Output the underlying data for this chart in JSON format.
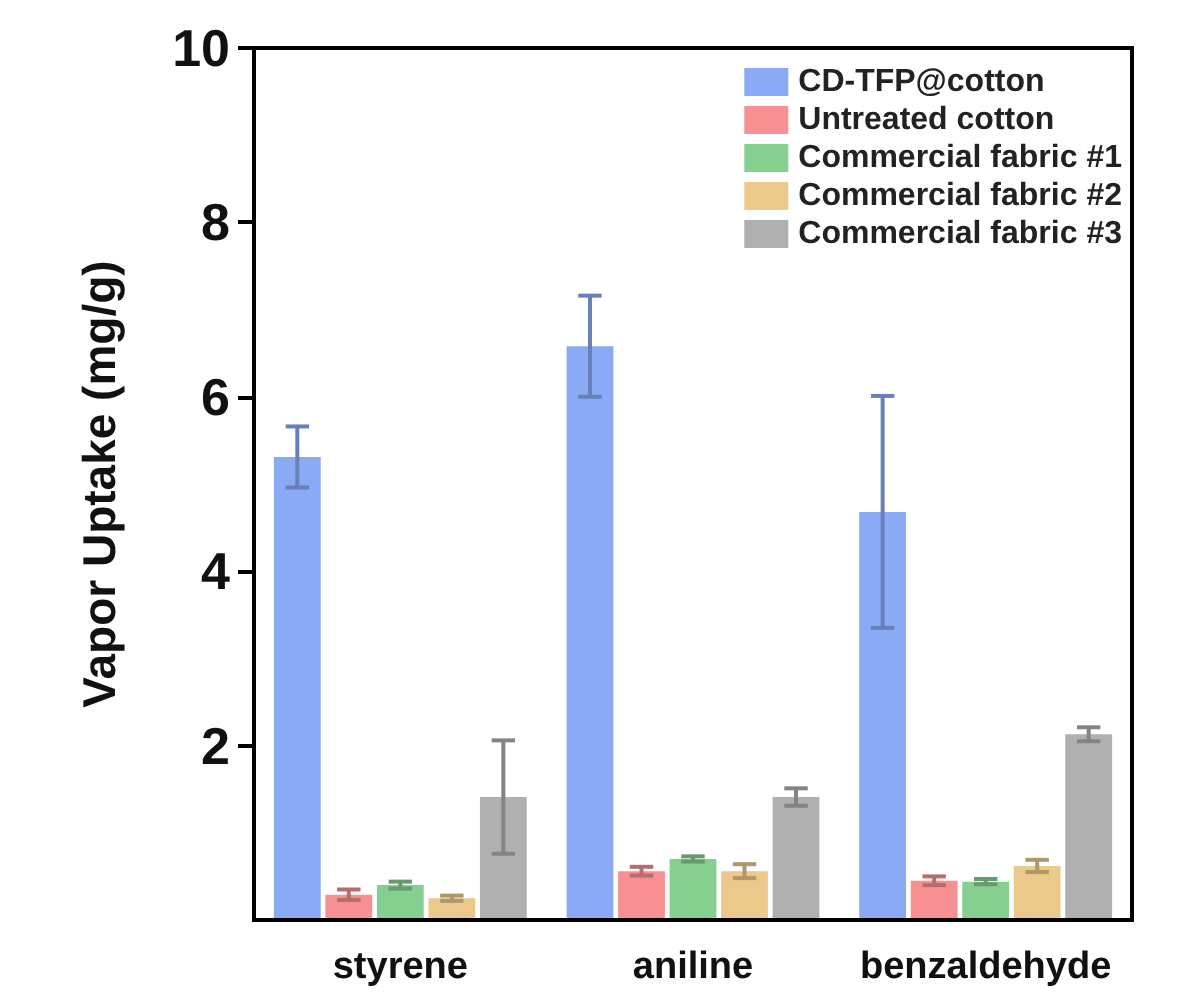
{
  "chart_data": {
    "type": "bar",
    "ylabel": "Vapor Uptake (mg/g)",
    "categories": [
      "styrene",
      "aniline",
      "benzaldehyde"
    ],
    "ylim": [
      0,
      10
    ],
    "yticks": [
      2,
      4,
      6,
      8,
      10
    ],
    "legend": "top right",
    "grid": false,
    "series": [
      {
        "name": "CD-TFP@cotton",
        "color": "#8aaaf5",
        "values": [
          5.31,
          6.58,
          4.68
        ],
        "errors": [
          0.35,
          0.58,
          1.33
        ]
      },
      {
        "name": "Untreated cotton",
        "color": "#f79090",
        "values": [
          0.29,
          0.56,
          0.45
        ],
        "errors": [
          0.06,
          0.05,
          0.05
        ]
      },
      {
        "name": "Commercial fabric #1",
        "color": "#86d08f",
        "values": [
          0.4,
          0.7,
          0.44
        ],
        "errors": [
          0.04,
          0.03,
          0.03
        ]
      },
      {
        "name": "Commercial fabric #2",
        "color": "#ebc98a",
        "values": [
          0.25,
          0.56,
          0.62
        ],
        "errors": [
          0.03,
          0.08,
          0.07
        ]
      },
      {
        "name": "Commercial fabric #3",
        "color": "#b0b0b0",
        "values": [
          1.41,
          1.41,
          2.13
        ],
        "errors": [
          0.65,
          0.1,
          0.08
        ]
      }
    ]
  }
}
